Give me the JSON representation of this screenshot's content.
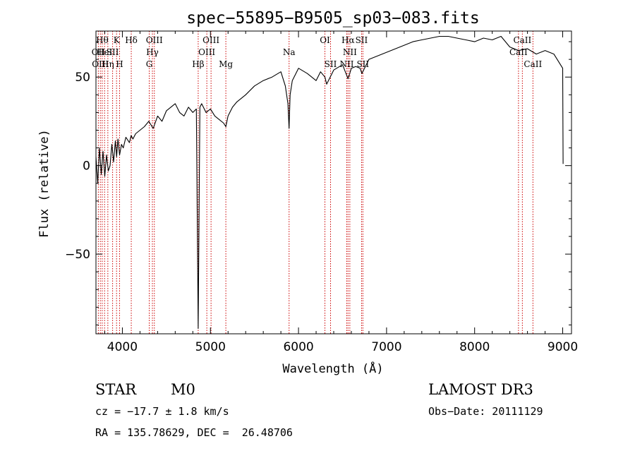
{
  "chart_data": {
    "type": "line",
    "title": "spec−55895−B9505_sp03−083.fits",
    "xlabel": "Wavelength (Å)",
    "ylabel": "Flux (relative)",
    "xlim": [
      3700,
      9100
    ],
    "ylim": [
      -95,
      76
    ],
    "x_ticks": [
      4000,
      5000,
      6000,
      7000,
      8000,
      9000
    ],
    "y_ticks": [
      -50,
      0,
      50
    ],
    "y_tick_labels": [
      "−50",
      "0",
      "50"
    ],
    "series": [
      {
        "name": "flux",
        "x": [
          3700,
          3720,
          3740,
          3760,
          3780,
          3800,
          3820,
          3840,
          3860,
          3880,
          3900,
          3920,
          3935,
          3950,
          3968,
          3990,
          4010,
          4040,
          4080,
          4100,
          4120,
          4150,
          4200,
          4250,
          4300,
          4350,
          4400,
          4450,
          4500,
          4550,
          4600,
          4650,
          4700,
          4750,
          4800,
          4840,
          4861,
          4880,
          4900,
          4950,
          5000,
          5050,
          5100,
          5150,
          5175,
          5200,
          5250,
          5300,
          5400,
          5500,
          5600,
          5700,
          5800,
          5850,
          5880,
          5893,
          5905,
          5930,
          6000,
          6100,
          6200,
          6250,
          6300,
          6320,
          6400,
          6500,
          6563,
          6600,
          6650,
          6700,
          6720,
          6800,
          6900,
          7000,
          7100,
          7200,
          7300,
          7400,
          7500,
          7600,
          7700,
          7800,
          7900,
          8000,
          8100,
          8200,
          8300,
          8400,
          8500,
          8600,
          8700,
          8800,
          8900,
          9000,
          9005
        ],
        "values": [
          5,
          -10,
          10,
          -5,
          8,
          -6,
          6,
          -3,
          0,
          12,
          2,
          14,
          5,
          15,
          6,
          12,
          10,
          16,
          13,
          17,
          15,
          18,
          20,
          22,
          25,
          21,
          28,
          25,
          31,
          33,
          35,
          30,
          28,
          33,
          30,
          32,
          -92,
          33,
          35,
          30,
          32,
          28,
          26,
          24,
          22,
          28,
          33,
          36,
          40,
          45,
          48,
          50,
          53,
          45,
          35,
          21,
          40,
          48,
          55,
          52,
          48,
          53,
          50,
          46,
          54,
          57,
          49,
          55,
          56,
          55,
          52,
          60,
          62,
          64,
          66,
          68,
          70,
          71,
          72,
          73,
          73,
          72,
          71,
          70,
          72,
          71,
          73,
          67,
          65,
          66,
          63,
          65,
          63,
          55,
          1
        ]
      }
    ],
    "lines": [
      {
        "wave": 3727,
        "label": "OII",
        "row": 2
      },
      {
        "wave": 3750,
        "label": "OIII",
        "row": 3
      },
      {
        "wave": 3771,
        "label": "Hθ",
        "row": 1
      },
      {
        "wave": 3798,
        "label": "HeI",
        "row": 2
      },
      {
        "wave": 3835,
        "label": "Hη",
        "row": 3
      },
      {
        "wave": 3889,
        "label": "SII",
        "row": 2
      },
      {
        "wave": 3934,
        "label": "K",
        "row": 1
      },
      {
        "wave": 3968,
        "label": "H",
        "row": 3
      },
      {
        "wave": 4101,
        "label": "Hδ",
        "row": 1
      },
      {
        "wave": 4305,
        "label": "G",
        "row": 3
      },
      {
        "wave": 4341,
        "label": "Hγ",
        "row": 2
      },
      {
        "wave": 4363,
        "label": "OIII",
        "row": 1
      },
      {
        "wave": 4861,
        "label": "Hβ",
        "row": 3
      },
      {
        "wave": 4959,
        "label": "OIII",
        "row": 2
      },
      {
        "wave": 5007,
        "label": "OIII",
        "row": 1
      },
      {
        "wave": 5175,
        "label": "Mg",
        "row": 3
      },
      {
        "wave": 5893,
        "label": "Na",
        "row": 2
      },
      {
        "wave": 6300,
        "label": "OI",
        "row": 1
      },
      {
        "wave": 6364,
        "label": "SII",
        "row": 3
      },
      {
        "wave": 6548,
        "label": "NII",
        "row": 3
      },
      {
        "wave": 6563,
        "label": "Hα",
        "row": 1
      },
      {
        "wave": 6583,
        "label": "NII",
        "row": 2
      },
      {
        "wave": 6716,
        "label": "SII",
        "row": 1
      },
      {
        "wave": 6731,
        "label": "SII",
        "row": 3
      },
      {
        "wave": 8498,
        "label": "CaII",
        "row": 2
      },
      {
        "wave": 8542,
        "label": "CaII",
        "row": 1
      },
      {
        "wave": 8662,
        "label": "CaII",
        "row": 3
      }
    ]
  },
  "info": {
    "star_class": "STAR",
    "subclass": "M0",
    "survey": "LAMOST DR3",
    "cz": "cz = −17.7 ± 1.8 km/s",
    "obs_date": "Obs−Date: 20111129",
    "coords": "RA = 135.78629, DEC =  26.48706"
  },
  "colors": {
    "spectrum": "#000000",
    "line_markers": "#cc0000",
    "axes": "#000000",
    "background": "#ffffff"
  }
}
